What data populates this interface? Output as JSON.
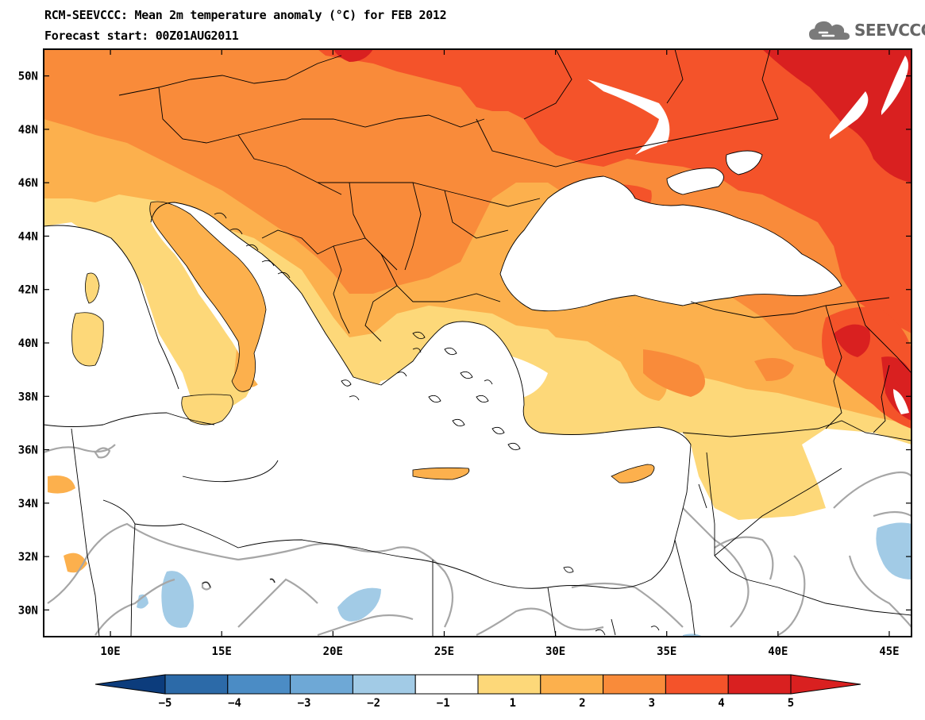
{
  "title": "RCM-SEEVCCC: Mean 2m temperature anomaly (°C) for FEB 2012",
  "subtitle": "Forecast start: 00Z01AUG2011",
  "logo": {
    "text": "SEEVCCC",
    "icon": "cloud-icon"
  },
  "map": {
    "variable": "Mean 2m temperature anomaly",
    "units": "°C",
    "lon_range": [
      7,
      46
    ],
    "lat_range": [
      29,
      51
    ],
    "lat_labels": [
      "30N",
      "32N",
      "34N",
      "36N",
      "38N",
      "40N",
      "42N",
      "44N",
      "46N",
      "48N",
      "50N"
    ],
    "lon_labels": [
      "10E",
      "15E",
      "20E",
      "25E",
      "30E",
      "35E",
      "40E",
      "45E"
    ]
  },
  "colorbar": {
    "tick_labels": [
      "-5",
      "-4",
      "-3",
      "-2",
      "-1",
      "1",
      "2",
      "3",
      "4",
      "5"
    ],
    "colors": [
      "#0c3c7c",
      "#2c6aa8",
      "#4b8cc5",
      "#6ea8d6",
      "#a2cbe6",
      "#ffffff",
      "#fdd879",
      "#fcb04d",
      "#f98b3a",
      "#f4532a",
      "#d92020"
    ]
  },
  "colors": {
    "level1": "#fdd879",
    "level2": "#fcb04d",
    "level3": "#f98b3a",
    "level4": "#f4532a",
    "level5": "#d92020",
    "neg1": "#a2cbe6",
    "contour_gray": "#a6a6a6"
  }
}
